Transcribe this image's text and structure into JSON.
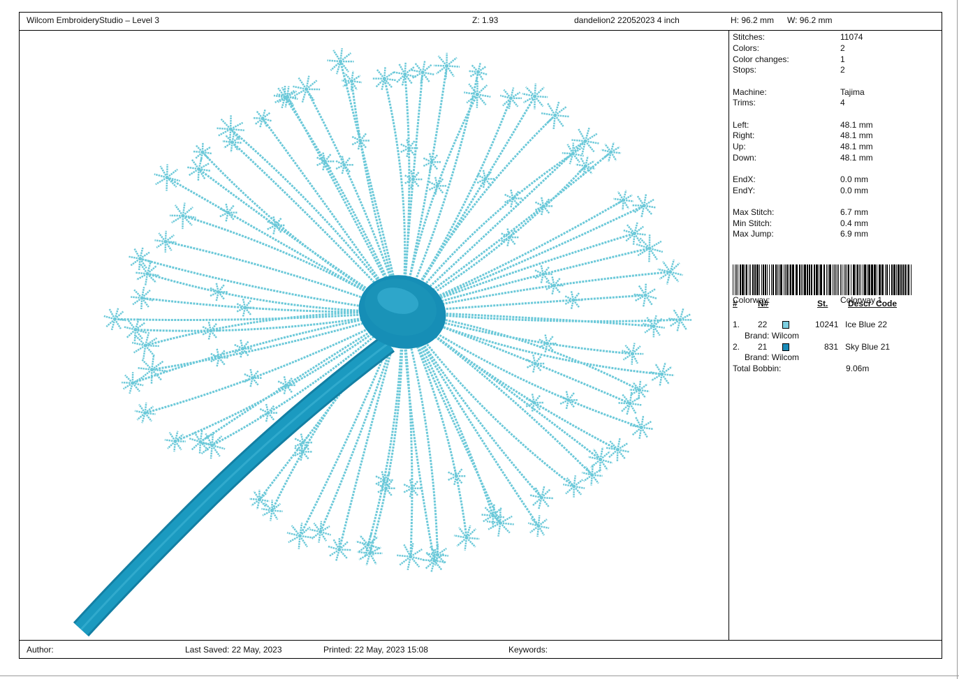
{
  "header": {
    "app_title": "Wilcom EmbroideryStudio – Level 3",
    "zoom": "Z: 1.93",
    "design_name": "dandelion2 22052023 4 inch",
    "height": "H: 96.2 mm",
    "width": "W: 96.2 mm"
  },
  "stats": [
    {
      "label": "Stitches:",
      "value": "11074"
    },
    {
      "label": "Colors:",
      "value": "2"
    },
    {
      "label": "Color changes:",
      "value": "1"
    },
    {
      "label": "Stops:",
      "value": "2"
    },
    {
      "label": "Machine:",
      "value": "Tajima"
    },
    {
      "label": "Trims:",
      "value": "4"
    },
    {
      "label": "Left:",
      "value": "48.1 mm"
    },
    {
      "label": "Right:",
      "value": "48.1 mm"
    },
    {
      "label": "Up:",
      "value": "48.1 mm"
    },
    {
      "label": "Down:",
      "value": "48.1 mm"
    },
    {
      "label": "EndX:",
      "value": "0.0 mm"
    },
    {
      "label": "EndY:",
      "value": "0.0 mm"
    },
    {
      "label": "Max Stitch:",
      "value": "6.7 mm"
    },
    {
      "label": "Min Stitch:",
      "value": "0.4 mm"
    },
    {
      "label": "Max Jump:",
      "value": "6.9 mm"
    }
  ],
  "colorway": {
    "label": "Colorway:",
    "value": "Colorway 1"
  },
  "color_table": {
    "headers": {
      "num": "#",
      "code": "N#",
      "stitches": "St.",
      "descr": "Descr_Code"
    },
    "rows": [
      {
        "index": "1.",
        "code": "22",
        "swatch": "#7ecfe0",
        "stitches": "10241",
        "descr": "Ice Blue 22",
        "brand": "Brand: Wilcom"
      },
      {
        "index": "2.",
        "code": "21",
        "swatch": "#1a8bb8",
        "stitches": "831",
        "descr": "Sky Blue 21",
        "brand": "Brand: Wilcom"
      }
    ],
    "total_label": "Total Bobbin:",
    "total_value": "9.06m"
  },
  "footer": {
    "author": "Author:",
    "last_saved": "Last Saved: 22 May, 2023",
    "printed": "Printed: 22 May, 2023 15:08",
    "keywords": "Keywords:"
  },
  "design_colors": {
    "thread_light": "#6cc9d9",
    "thread_dark": "#1a93b8",
    "stem": "#1b9ac0"
  }
}
